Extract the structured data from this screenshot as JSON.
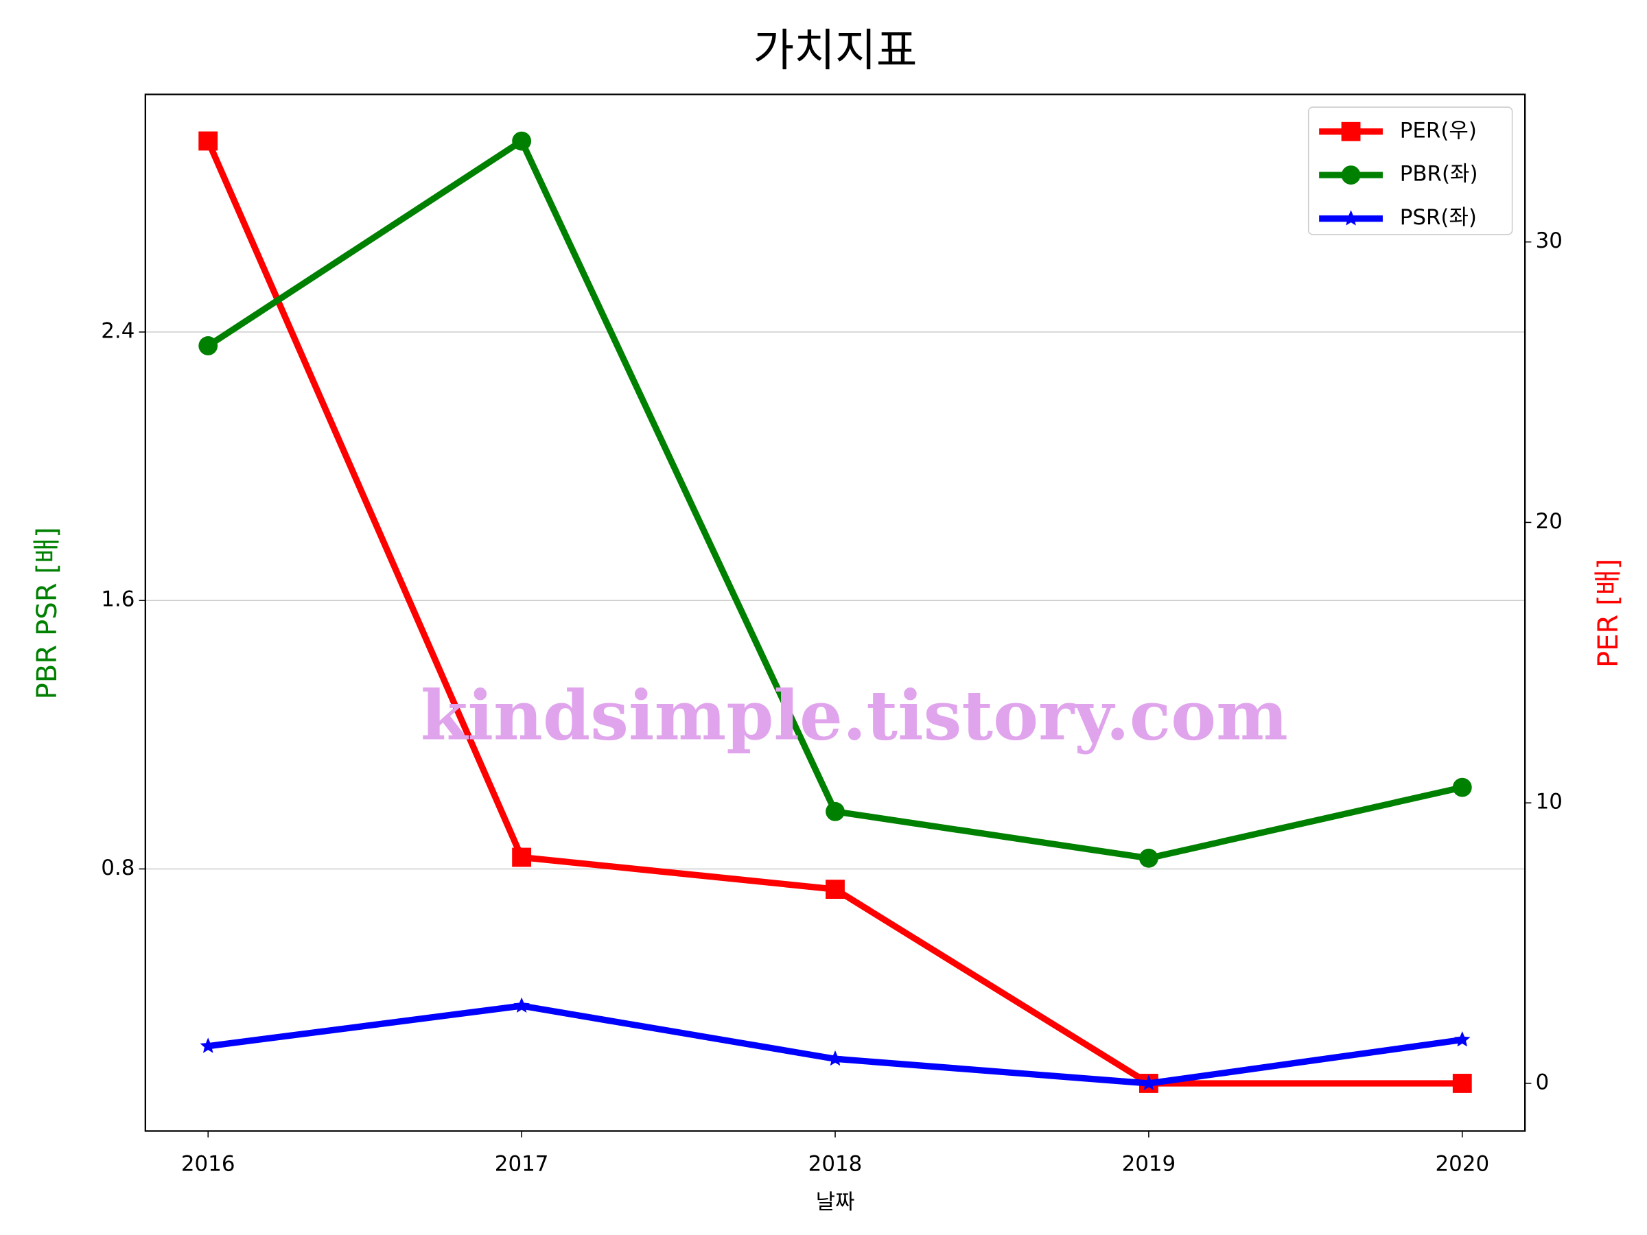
{
  "chart_data": {
    "type": "line",
    "title": "가치지표",
    "xlabel": "날짜",
    "ylabel": "PBR PSR [배]",
    "ylabel_color": "#008000",
    "y2label": "PER [배]",
    "y2label_color": "#ff0000",
    "watermark": "kindsimple.tistory.com",
    "watermark_color": "#e0a4ec",
    "x": [
      2016,
      2017,
      2018,
      2019,
      2020
    ],
    "xlim": [
      2015.8,
      2020.2
    ],
    "xticks": [
      2016,
      2017,
      2018,
      2019,
      2020
    ],
    "ylim": [
      0.019,
      3.108
    ],
    "yticks": [
      0.8,
      1.6,
      2.4
    ],
    "y2lim": [
      -1.7,
      35.26
    ],
    "y2ticks": [
      0,
      10,
      20,
      30
    ],
    "grid": "y",
    "legend": "upper right",
    "series": [
      {
        "name": "PER(우)",
        "color": "#ff0000",
        "marker": "square",
        "axis": "y2",
        "values": [
          33.6,
          8.06,
          6.92,
          0,
          0
        ]
      },
      {
        "name": "PBR(좌)",
        "color": "#008000",
        "marker": "circle",
        "values": [
          2.359,
          2.969,
          0.971,
          0.832,
          1.043
        ]
      },
      {
        "name": "PSR(좌)",
        "color": "#0000ff",
        "marker": "star",
        "values": [
          0.272,
          0.392,
          0.234,
          0.161,
          0.291
        ]
      }
    ]
  }
}
